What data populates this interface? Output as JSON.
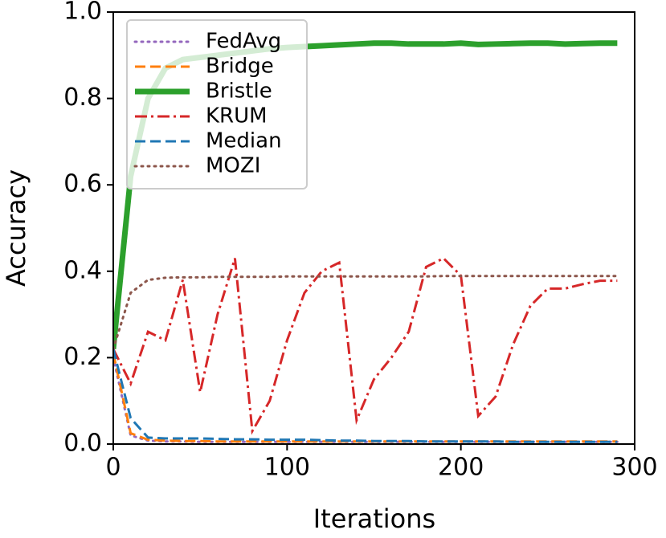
{
  "chart_data": {
    "type": "line",
    "x_label": "Iterations",
    "y_label": "Accuracy",
    "x": [
      0,
      10,
      20,
      30,
      40,
      50,
      60,
      70,
      80,
      90,
      100,
      110,
      120,
      130,
      140,
      150,
      160,
      170,
      180,
      190,
      200,
      210,
      220,
      230,
      240,
      250,
      260,
      270,
      280,
      290
    ],
    "xlim": [
      0,
      300
    ],
    "xticks": [
      0,
      100,
      200,
      300
    ],
    "ylim": [
      0,
      1
    ],
    "yticks": [
      {
        "value": 0,
        "label": "0.0"
      },
      0.2,
      0.4,
      0.6,
      0.8,
      {
        "value": 1,
        "label": "1.0"
      }
    ],
    "legend": "upper left",
    "series": [
      {
        "name": "FedAvg",
        "color": "#9467bd",
        "linestyle": "dotted",
        "linewidth": 3,
        "values": [
          0.2,
          0.02,
          0.008,
          0.006,
          0.006,
          0.005,
          0.005,
          0.005,
          0.005,
          0.005,
          0.005,
          0.005,
          0.005,
          0.005,
          0.005,
          0.005,
          0.005,
          0.005,
          0.005,
          0.005,
          0.005,
          0.005,
          0.005,
          0.005,
          0.005,
          0.005,
          0.005,
          0.005,
          0.005,
          0.005
        ]
      },
      {
        "name": "Bridge",
        "color": "#ff7f0e",
        "linestyle": "dashed",
        "linewidth": 3,
        "values": [
          0.21,
          0.025,
          0.01,
          0.008,
          0.007,
          0.007,
          0.006,
          0.006,
          0.006,
          0.006,
          0.006,
          0.006,
          0.006,
          0.006,
          0.006,
          0.006,
          0.006,
          0.006,
          0.006,
          0.006,
          0.006,
          0.006,
          0.006,
          0.006,
          0.006,
          0.006,
          0.006,
          0.006,
          0.006,
          0.006
        ]
      },
      {
        "name": "Bristle",
        "color": "#2ca02c",
        "linestyle": "solid",
        "linewidth": 7,
        "values": [
          0.22,
          0.62,
          0.8,
          0.87,
          0.89,
          0.895,
          0.9,
          0.905,
          0.91,
          0.915,
          0.918,
          0.92,
          0.922,
          0.924,
          0.926,
          0.928,
          0.928,
          0.926,
          0.926,
          0.926,
          0.928,
          0.925,
          0.926,
          0.927,
          0.928,
          0.928,
          0.926,
          0.927,
          0.928,
          0.928
        ]
      },
      {
        "name": "KRUM",
        "color": "#d62728",
        "linestyle": "dashdot",
        "linewidth": 3,
        "values": [
          0.22,
          0.14,
          0.26,
          0.24,
          0.38,
          0.12,
          0.3,
          0.43,
          0.03,
          0.1,
          0.24,
          0.35,
          0.4,
          0.42,
          0.055,
          0.15,
          0.2,
          0.26,
          0.41,
          0.43,
          0.39,
          0.065,
          0.11,
          0.23,
          0.32,
          0.36,
          0.36,
          0.37,
          0.378,
          0.378
        ]
      },
      {
        "name": "Median",
        "color": "#1f77b4",
        "linestyle": "dashed",
        "linewidth": 3,
        "values": [
          0.22,
          0.06,
          0.015,
          0.013,
          0.013,
          0.013,
          0.012,
          0.011,
          0.011,
          0.01,
          0.01,
          0.01,
          0.009,
          0.008,
          0.008,
          0.007,
          0.007,
          0.007,
          0.006,
          0.006,
          0.006,
          0.006,
          0.006,
          0.005,
          0.005,
          0.005,
          0.005,
          0.005,
          0.005,
          0.005
        ]
      },
      {
        "name": "MOZI",
        "color": "#8c564b",
        "linestyle": "dotted",
        "linewidth": 3,
        "values": [
          0.22,
          0.35,
          0.38,
          0.385,
          0.386,
          0.386,
          0.387,
          0.387,
          0.387,
          0.387,
          0.388,
          0.388,
          0.388,
          0.388,
          0.388,
          0.388,
          0.388,
          0.388,
          0.388,
          0.389,
          0.389,
          0.389,
          0.389,
          0.389,
          0.389,
          0.389,
          0.389,
          0.389,
          0.389,
          0.389
        ]
      }
    ]
  }
}
